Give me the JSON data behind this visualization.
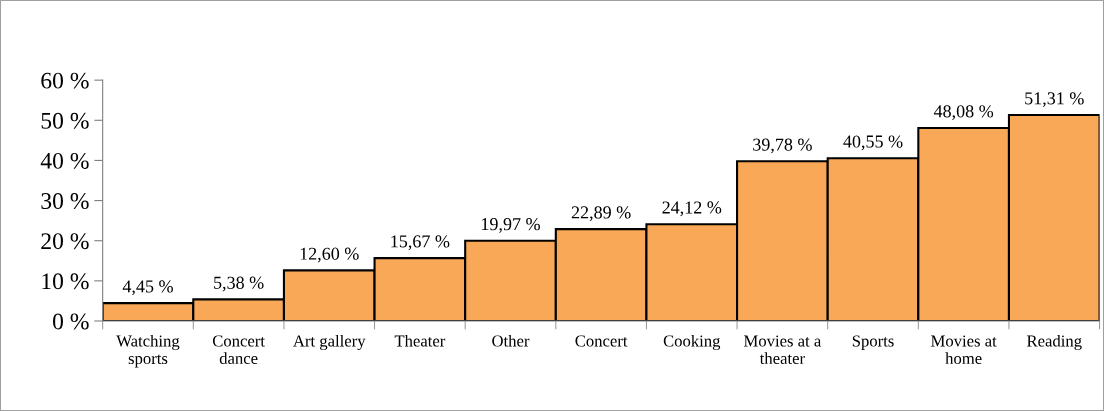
{
  "chart_data": {
    "type": "bar",
    "categories": [
      "Watching\nsports",
      "Concert\ndance",
      "Art gallery",
      "Theater",
      "Other",
      "Concert",
      "Cooking",
      "Movies at a\ntheater",
      "Sports",
      "Movies at\nhome",
      "Reading"
    ],
    "values": [
      4.45,
      5.38,
      12.6,
      15.67,
      19.97,
      22.89,
      24.12,
      39.78,
      40.55,
      48.08,
      51.31
    ],
    "value_labels": [
      "4,45 %",
      "5,38 %",
      "12,60 %",
      "15,67 %",
      "19,97 %",
      "22,89 %",
      "24,12 %",
      "39,78 %",
      "40,55 %",
      "48,08 %",
      "51,31 %"
    ],
    "color": "#f9a857",
    "ylim": [
      0,
      60
    ],
    "yticks": [
      {
        "value": 0,
        "label": "0 %"
      },
      {
        "value": 10,
        "label": "10 %"
      },
      {
        "value": 20,
        "label": "20 %"
      },
      {
        "value": 30,
        "label": "30 %"
      },
      {
        "value": 40,
        "label": "40 %"
      },
      {
        "value": 50,
        "label": "50 %"
      },
      {
        "value": 60,
        "label": "60 %"
      }
    ],
    "grid": false,
    "legend": false
  }
}
